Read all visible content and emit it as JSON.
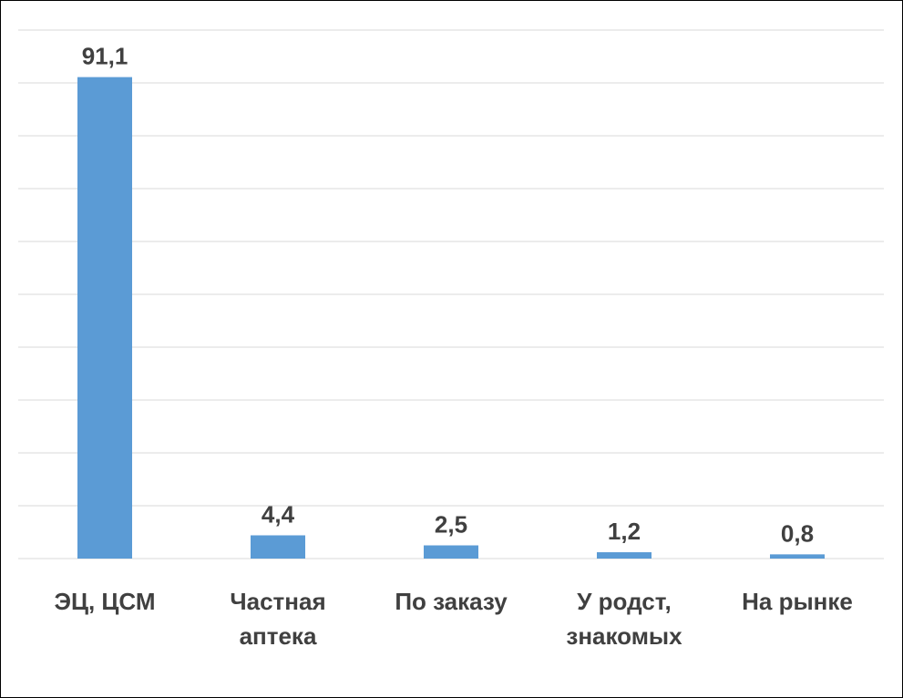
{
  "chart_data": {
    "type": "bar",
    "categories": [
      "ЭЦ, ЦСМ",
      "Частная аптека",
      "По заказу",
      "У родст, знакомых",
      "На рынке"
    ],
    "values": [
      91.1,
      4.4,
      2.5,
      1.2,
      0.8
    ],
    "value_labels": [
      "91,1",
      "4,4",
      "2,5",
      "1,2",
      "0,8"
    ],
    "color": "#5b9bd5",
    "ylim": [
      0,
      100
    ],
    "yticks": [
      0,
      10,
      20,
      30,
      40,
      50,
      60,
      70,
      80,
      90,
      100
    ],
    "grid": true
  }
}
